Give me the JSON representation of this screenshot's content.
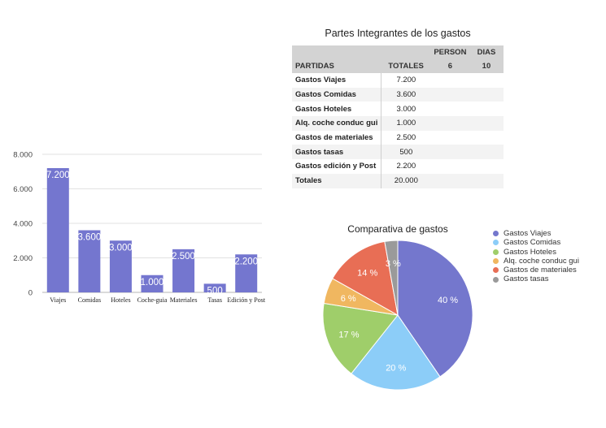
{
  "table": {
    "title": "Partes Integrantes de los gastos",
    "headers": {
      "partidas": "PARTIDAS",
      "totales": "TOTALES",
      "person": "PERSON",
      "person_value": "6",
      "dias": "DIAS",
      "dias_value": "10"
    },
    "rows": [
      {
        "label": "Gastos Viajes",
        "value": "7.200"
      },
      {
        "label": "Gastos Comidas",
        "value": "3.600"
      },
      {
        "label": "Gastos Hoteles",
        "value": "3.000"
      },
      {
        "label": "Alq. coche conduc gui",
        "value": "1.000"
      },
      {
        "label": "Gastos de materiales",
        "value": "2.500"
      },
      {
        "label": "Gastos tasas",
        "value": "500"
      },
      {
        "label": "Gastos edición y Post",
        "value": "2.200"
      },
      {
        "label": "Totales",
        "value": "20.000"
      }
    ]
  },
  "chart_data": [
    {
      "type": "bar",
      "categories": [
        "Viajes",
        "Comidas",
        "Hoteles",
        "Coche-guia",
        "Materiales",
        "Tasas",
        "Edición y Post"
      ],
      "values": [
        7200,
        3600,
        3000,
        1000,
        2500,
        500,
        2200
      ],
      "data_labels": [
        "7.200",
        "3.600",
        "3.000",
        "1.000",
        "2.500",
        "500",
        "2.200"
      ],
      "yticks": [
        "0",
        "2.000",
        "4.000",
        "6.000",
        "8.000"
      ],
      "ylim": [
        0,
        8000
      ],
      "grid": true,
      "color": "#7476cf"
    },
    {
      "type": "pie",
      "title": "Comparativa de gastos",
      "labels": [
        "Gastos Viajes",
        "Gastos Comidas",
        "Gastos Hoteles",
        "Alq. coche conduc gui",
        "Gastos de materiales",
        "Gastos tasas"
      ],
      "values": [
        7200,
        3600,
        3000,
        1000,
        2500,
        500
      ],
      "percent_labels": [
        "40 %",
        "20 %",
        "17 %",
        "6 %",
        "14 %",
        "3 %"
      ],
      "colors": [
        "#7477cd",
        "#8ccdf8",
        "#9fce6a",
        "#f0b760",
        "#e86e55",
        "#9a9a9a"
      ],
      "legend_position": "right"
    }
  ]
}
